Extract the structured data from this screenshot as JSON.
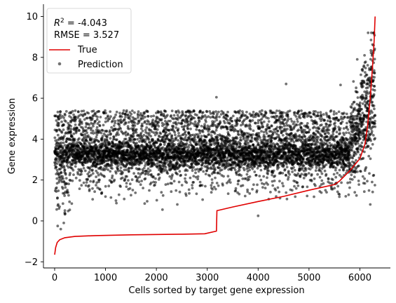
{
  "chart_data": {
    "type": "scatter",
    "xlabel": "Cells sorted by target gene expression",
    "ylabel": "Gene expression",
    "xlim": [
      -220,
      6600
    ],
    "ylim": [
      -2.3,
      10.6
    ],
    "xticks": [
      0,
      1000,
      2000,
      3000,
      4000,
      5000,
      6000
    ],
    "yticks": [
      -2,
      0,
      2,
      4,
      6,
      8,
      10
    ],
    "grid": false,
    "legend_position": "top-left",
    "stats": {
      "r2_label": "R",
      "r2_sup": "2",
      "r2_value": " = -4.043",
      "rmse": "RMSE = 3.527"
    },
    "series": [
      {
        "name": "True",
        "kind": "line",
        "color": "#e00000",
        "x": [
          0,
          20,
          50,
          100,
          200,
          400,
          800,
          1500,
          2500,
          2950,
          3180,
          3190,
          3500,
          4000,
          4500,
          5000,
          5500,
          5600,
          5800,
          6000,
          6100,
          6150,
          6200,
          6250,
          6280,
          6300
        ],
        "y": [
          -1.65,
          -1.3,
          -1.05,
          -0.92,
          -0.82,
          -0.76,
          -0.72,
          -0.68,
          -0.65,
          -0.63,
          -0.5,
          0.5,
          0.68,
          0.95,
          1.2,
          1.5,
          1.78,
          1.95,
          2.45,
          3.05,
          3.75,
          4.6,
          5.9,
          7.6,
          8.8,
          10.0
        ]
      },
      {
        "name": "Prediction",
        "kind": "scatter",
        "color": "#000000",
        "opacity": 0.55,
        "n_points": 6300,
        "core_band": [
          2.4,
          4.0
        ],
        "upper_band": [
          3.9,
          5.4
        ],
        "high_tail_start_x": 5800,
        "high_tail_range": [
          2.4,
          9.2
        ],
        "outliers": [
          {
            "x": 3180,
            "y": 6.05
          },
          {
            "x": 4550,
            "y": 6.7
          },
          {
            "x": 4000,
            "y": 0.25
          },
          {
            "x": 1770,
            "y": 0.85
          },
          {
            "x": 1450,
            "y": 1.55
          },
          {
            "x": 5620,
            "y": 6.65
          },
          {
            "x": 2120,
            "y": 0.55
          },
          {
            "x": 60,
            "y": -0.25
          },
          {
            "x": 120,
            "y": -0.4
          },
          {
            "x": 180,
            "y": -0.1
          },
          {
            "x": 5500,
            "y": 1.6
          }
        ]
      }
    ]
  }
}
